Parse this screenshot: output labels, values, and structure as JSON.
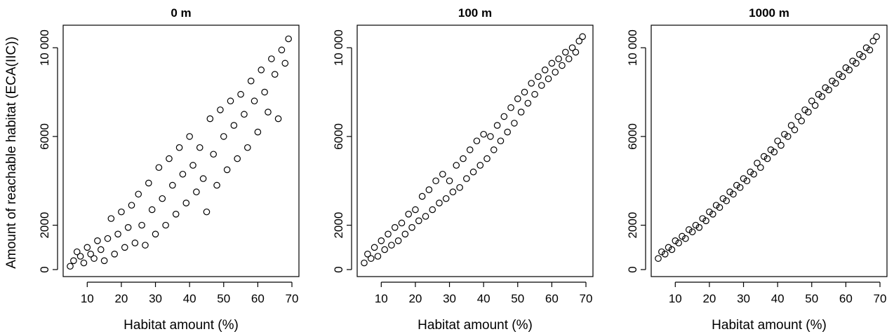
{
  "chart_data": {
    "type": "scatter",
    "shared_ylabel": "Amount of reachable habitat (ECA(IIC))",
    "marker_color": "#000000",
    "panels": [
      {
        "title": "0 m",
        "xlabel": "Habitat amount (%)",
        "xlim": [
          5,
          70
        ],
        "ylim": [
          0,
          10700
        ],
        "xticks": [
          10,
          20,
          30,
          40,
          50,
          60,
          70
        ],
        "yticks": [
          0,
          2000,
          6000,
          10000
        ],
        "ytick_labels": [
          "0",
          "2000",
          "6000",
          "10 000"
        ],
        "points": [
          [
            5,
            150
          ],
          [
            6,
            400
          ],
          [
            7,
            800
          ],
          [
            8,
            600
          ],
          [
            9,
            300
          ],
          [
            10,
            1000
          ],
          [
            11,
            700
          ],
          [
            12,
            500
          ],
          [
            13,
            1300
          ],
          [
            14,
            900
          ],
          [
            15,
            400
          ],
          [
            16,
            1400
          ],
          [
            17,
            2300
          ],
          [
            18,
            700
          ],
          [
            19,
            1600
          ],
          [
            20,
            2600
          ],
          [
            21,
            1000
          ],
          [
            22,
            1900
          ],
          [
            23,
            2900
          ],
          [
            24,
            1200
          ],
          [
            25,
            3400
          ],
          [
            26,
            2000
          ],
          [
            27,
            1100
          ],
          [
            28,
            3900
          ],
          [
            29,
            2700
          ],
          [
            30,
            1600
          ],
          [
            31,
            4600
          ],
          [
            32,
            3200
          ],
          [
            33,
            2000
          ],
          [
            34,
            5000
          ],
          [
            35,
            3800
          ],
          [
            36,
            2500
          ],
          [
            37,
            5500
          ],
          [
            38,
            4300
          ],
          [
            39,
            3000
          ],
          [
            40,
            6000
          ],
          [
            41,
            4700
          ],
          [
            42,
            3500
          ],
          [
            43,
            5500
          ],
          [
            44,
            4100
          ],
          [
            45,
            2600
          ],
          [
            46,
            6800
          ],
          [
            47,
            5200
          ],
          [
            48,
            3800
          ],
          [
            49,
            7200
          ],
          [
            50,
            6000
          ],
          [
            51,
            4500
          ],
          [
            52,
            7600
          ],
          [
            53,
            6500
          ],
          [
            54,
            5000
          ],
          [
            55,
            7900
          ],
          [
            56,
            7000
          ],
          [
            57,
            5500
          ],
          [
            58,
            8500
          ],
          [
            59,
            7600
          ],
          [
            60,
            6200
          ],
          [
            61,
            9000
          ],
          [
            62,
            8000
          ],
          [
            63,
            7100
          ],
          [
            64,
            9500
          ],
          [
            65,
            8800
          ],
          [
            66,
            6800
          ],
          [
            67,
            9900
          ],
          [
            68,
            9300
          ],
          [
            69,
            10400
          ]
        ]
      },
      {
        "title": "100 m",
        "xlabel": "Habitat amount (%)",
        "xlim": [
          5,
          70
        ],
        "ylim": [
          0,
          10700
        ],
        "xticks": [
          10,
          20,
          30,
          40,
          50,
          60,
          70
        ],
        "yticks": [
          0,
          2000,
          6000,
          10000
        ],
        "ytick_labels": [
          "0",
          "2000",
          "6000",
          "10 000"
        ],
        "points": [
          [
            5,
            300
          ],
          [
            6,
            700
          ],
          [
            7,
            500
          ],
          [
            8,
            1000
          ],
          [
            9,
            600
          ],
          [
            10,
            1300
          ],
          [
            11,
            900
          ],
          [
            12,
            1600
          ],
          [
            13,
            1100
          ],
          [
            14,
            1900
          ],
          [
            15,
            1300
          ],
          [
            16,
            2100
          ],
          [
            17,
            1600
          ],
          [
            18,
            2500
          ],
          [
            19,
            1900
          ],
          [
            20,
            2700
          ],
          [
            21,
            2200
          ],
          [
            22,
            3300
          ],
          [
            23,
            2400
          ],
          [
            24,
            3600
          ],
          [
            25,
            2700
          ],
          [
            26,
            4000
          ],
          [
            27,
            3000
          ],
          [
            28,
            4300
          ],
          [
            29,
            3200
          ],
          [
            30,
            4000
          ],
          [
            31,
            3500
          ],
          [
            32,
            4700
          ],
          [
            33,
            3700
          ],
          [
            34,
            5000
          ],
          [
            35,
            4100
          ],
          [
            36,
            5400
          ],
          [
            37,
            4400
          ],
          [
            38,
            5800
          ],
          [
            39,
            4700
          ],
          [
            40,
            6100
          ],
          [
            41,
            5000
          ],
          [
            42,
            6000
          ],
          [
            43,
            5400
          ],
          [
            44,
            6500
          ],
          [
            45,
            5800
          ],
          [
            46,
            6900
          ],
          [
            47,
            6200
          ],
          [
            48,
            7300
          ],
          [
            49,
            6600
          ],
          [
            50,
            7700
          ],
          [
            51,
            7100
          ],
          [
            52,
            8000
          ],
          [
            53,
            7500
          ],
          [
            54,
            8400
          ],
          [
            55,
            7900
          ],
          [
            56,
            8700
          ],
          [
            57,
            8300
          ],
          [
            58,
            9000
          ],
          [
            59,
            8600
          ],
          [
            60,
            9300
          ],
          [
            61,
            8900
          ],
          [
            62,
            9500
          ],
          [
            63,
            9200
          ],
          [
            64,
            9800
          ],
          [
            65,
            9500
          ],
          [
            66,
            10000
          ],
          [
            67,
            9800
          ],
          [
            68,
            10300
          ],
          [
            69,
            10500
          ]
        ]
      },
      {
        "title": "1000 m",
        "xlabel": "Habitat amount (%)",
        "xlim": [
          5,
          70
        ],
        "ylim": [
          0,
          10700
        ],
        "xticks": [
          10,
          20,
          30,
          40,
          50,
          60,
          70
        ],
        "yticks": [
          0,
          2000,
          6000,
          10000
        ],
        "ytick_labels": [
          "0",
          "2000",
          "6000",
          "10 000"
        ],
        "points": [
          [
            5,
            500
          ],
          [
            6,
            800
          ],
          [
            7,
            700
          ],
          [
            8,
            1000
          ],
          [
            9,
            900
          ],
          [
            10,
            1300
          ],
          [
            11,
            1200
          ],
          [
            12,
            1500
          ],
          [
            13,
            1400
          ],
          [
            14,
            1800
          ],
          [
            15,
            1700
          ],
          [
            16,
            2000
          ],
          [
            17,
            1900
          ],
          [
            18,
            2300
          ],
          [
            19,
            2200
          ],
          [
            20,
            2600
          ],
          [
            21,
            2500
          ],
          [
            22,
            2900
          ],
          [
            23,
            2800
          ],
          [
            24,
            3200
          ],
          [
            25,
            3100
          ],
          [
            26,
            3500
          ],
          [
            27,
            3400
          ],
          [
            28,
            3800
          ],
          [
            29,
            3700
          ],
          [
            30,
            4100
          ],
          [
            31,
            4000
          ],
          [
            32,
            4400
          ],
          [
            33,
            4300
          ],
          [
            34,
            4800
          ],
          [
            35,
            4600
          ],
          [
            36,
            5100
          ],
          [
            37,
            5000
          ],
          [
            38,
            5400
          ],
          [
            39,
            5300
          ],
          [
            40,
            5800
          ],
          [
            41,
            5600
          ],
          [
            42,
            6100
          ],
          [
            43,
            6000
          ],
          [
            44,
            6500
          ],
          [
            45,
            6300
          ],
          [
            46,
            6900
          ],
          [
            47,
            6700
          ],
          [
            48,
            7200
          ],
          [
            49,
            7100
          ],
          [
            50,
            7600
          ],
          [
            51,
            7400
          ],
          [
            52,
            7900
          ],
          [
            53,
            7800
          ],
          [
            54,
            8200
          ],
          [
            55,
            8100
          ],
          [
            56,
            8500
          ],
          [
            57,
            8400
          ],
          [
            58,
            8800
          ],
          [
            59,
            8700
          ],
          [
            60,
            9100
          ],
          [
            61,
            9000
          ],
          [
            62,
            9400
          ],
          [
            63,
            9300
          ],
          [
            64,
            9700
          ],
          [
            65,
            9600
          ],
          [
            66,
            10000
          ],
          [
            67,
            9900
          ],
          [
            68,
            10300
          ],
          [
            69,
            10500
          ]
        ]
      }
    ]
  }
}
